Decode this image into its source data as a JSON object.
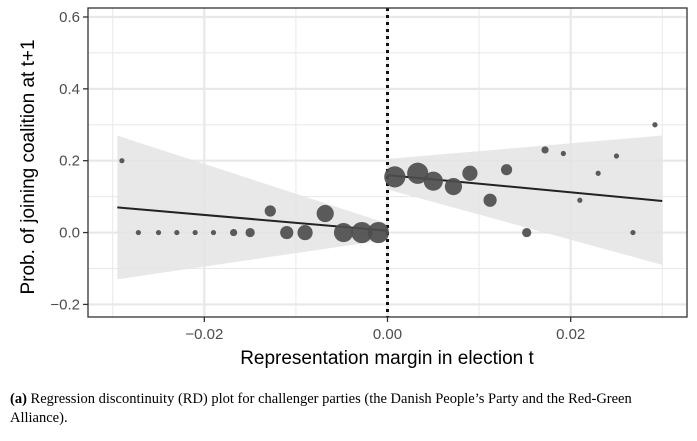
{
  "chart_data": {
    "type": "scatter",
    "xlabel": "Representation margin in election t",
    "ylabel": "Prob. of joining coalition at t+1",
    "xlim": [
      -0.0327,
      0.0327
    ],
    "ylim": [
      -0.235,
      0.625
    ],
    "x_ticks": [
      -0.02,
      0.0,
      0.02
    ],
    "x_tick_labels": [
      "−0.02",
      "0.00",
      "0.02"
    ],
    "y_ticks": [
      -0.2,
      0.0,
      0.2,
      0.4,
      0.6
    ],
    "y_tick_labels": [
      "−0.2",
      "0.0",
      "0.2",
      "0.4",
      "0.6"
    ],
    "grid": true,
    "cutoff": 0.0,
    "points": [
      {
        "x": -0.029,
        "y": 0.2,
        "size": 1
      },
      {
        "x": -0.0272,
        "y": 0.0,
        "size": 1
      },
      {
        "x": -0.025,
        "y": 0.0,
        "size": 1
      },
      {
        "x": -0.023,
        "y": 0.0,
        "size": 1
      },
      {
        "x": -0.021,
        "y": 0.0,
        "size": 1
      },
      {
        "x": -0.019,
        "y": 0.0,
        "size": 1
      },
      {
        "x": -0.0168,
        "y": 0.0,
        "size": 2
      },
      {
        "x": -0.015,
        "y": 0.0,
        "size": 3
      },
      {
        "x": -0.0128,
        "y": 0.06,
        "size": 4
      },
      {
        "x": -0.011,
        "y": 0.0,
        "size": 5
      },
      {
        "x": -0.009,
        "y": 0.0,
        "size": 6
      },
      {
        "x": -0.0068,
        "y": 0.053,
        "size": 7
      },
      {
        "x": -0.0048,
        "y": 0.0,
        "size": 8
      },
      {
        "x": -0.0028,
        "y": 0.0,
        "size": 9
      },
      {
        "x": -0.001,
        "y": 0.0,
        "size": 9
      },
      {
        "x": 0.0008,
        "y": 0.155,
        "size": 9
      },
      {
        "x": 0.0033,
        "y": 0.165,
        "size": 9
      },
      {
        "x": 0.005,
        "y": 0.143,
        "size": 8
      },
      {
        "x": 0.0072,
        "y": 0.128,
        "size": 7
      },
      {
        "x": 0.009,
        "y": 0.165,
        "size": 6
      },
      {
        "x": 0.0112,
        "y": 0.09,
        "size": 5
      },
      {
        "x": 0.013,
        "y": 0.175,
        "size": 4
      },
      {
        "x": 0.0152,
        "y": 0.0,
        "size": 3
      },
      {
        "x": 0.0172,
        "y": 0.23,
        "size": 2
      },
      {
        "x": 0.0192,
        "y": 0.22,
        "size": 1
      },
      {
        "x": 0.021,
        "y": 0.09,
        "size": 1
      },
      {
        "x": 0.023,
        "y": 0.165,
        "size": 1
      },
      {
        "x": 0.025,
        "y": 0.213,
        "size": 1
      },
      {
        "x": 0.0268,
        "y": 0.0,
        "size": 1
      },
      {
        "x": 0.0292,
        "y": 0.3,
        "size": 1
      }
    ],
    "fit_lines": [
      {
        "x": [
          -0.0295,
          0.0
        ],
        "y": [
          0.07,
          0.005
        ]
      },
      {
        "x": [
          0.0,
          0.03
        ],
        "y": [
          0.16,
          0.088
        ]
      }
    ],
    "confidence_bands": [
      {
        "x": [
          -0.0295,
          0.0
        ],
        "upper": [
          0.27,
          0.025
        ],
        "lower": [
          -0.13,
          -0.02
        ]
      },
      {
        "x": [
          0.0,
          0.03
        ],
        "upper": [
          0.205,
          0.27
        ],
        "lower": [
          0.12,
          -0.09
        ]
      }
    ],
    "colors": {
      "points": "#4d4d4d",
      "fit_line": "#222222",
      "band": "#e4e4e4",
      "grid": "#e8e8e8",
      "panel_border": "#333333"
    }
  },
  "caption": {
    "label": "(a)",
    "text": "Regression discontinuity (RD) plot for challenger parties (the Danish People’s Party and the Red-Green Alliance)."
  }
}
